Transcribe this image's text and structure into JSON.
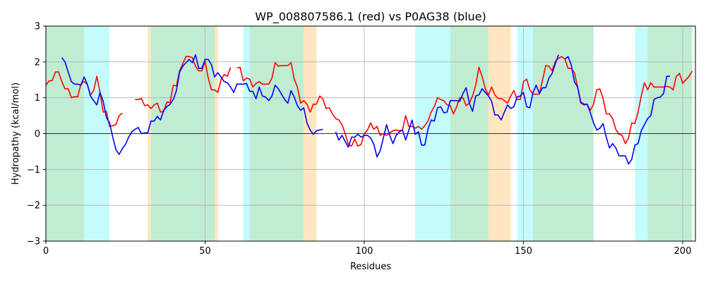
{
  "chart_data": {
    "type": "line",
    "title": "WP_008807586.1 (red) vs P0AG38 (blue)",
    "xlabel": "Residues",
    "ylabel": "Hydropathy (kcal/mol)",
    "xlim": [
      0,
      204
    ],
    "ylim": [
      -3,
      3
    ],
    "x_ticks": [
      0,
      50,
      100,
      150,
      200
    ],
    "y_ticks": [
      -3,
      -2,
      -1,
      0,
      1,
      2,
      3
    ],
    "grid": true,
    "zero_line": true,
    "colors": {
      "red_series": "#ff0000",
      "blue_series": "#0000ff",
      "green_band": "#c0ecd2",
      "cyan_band": "#c4fcfc",
      "orange_band": "#ffe6c0",
      "grid": "#b0b0b0"
    },
    "bands": [
      {
        "x0": 0,
        "x1": 12,
        "color": "green"
      },
      {
        "x0": 12,
        "x1": 20,
        "color": "cyan"
      },
      {
        "x0": 32,
        "x1": 33,
        "color": "orange"
      },
      {
        "x0": 33,
        "x1": 53,
        "color": "green"
      },
      {
        "x0": 53,
        "x1": 54,
        "color": "orange"
      },
      {
        "x0": 62,
        "x1": 64,
        "color": "cyan"
      },
      {
        "x0": 64,
        "x1": 81,
        "color": "green"
      },
      {
        "x0": 81,
        "x1": 85,
        "color": "orange"
      },
      {
        "x0": 116,
        "x1": 127,
        "color": "cyan"
      },
      {
        "x0": 127,
        "x1": 139,
        "color": "green"
      },
      {
        "x0": 139,
        "x1": 146,
        "color": "orange"
      },
      {
        "x0": 148,
        "x1": 153,
        "color": "cyan"
      },
      {
        "x0": 153,
        "x1": 172,
        "color": "green"
      },
      {
        "x0": 185,
        "x1": 189,
        "color": "cyan"
      },
      {
        "x0": 189,
        "x1": 203,
        "color": "green"
      }
    ],
    "series": [
      {
        "key": "red",
        "segments": [
          {
            "x_start": 0,
            "values": [
              1.35,
              1.47,
              1.48,
              1.72,
              1.72,
              1.45,
              1.25,
              1.25,
              1.0,
              1.03,
              1.03,
              1.38,
              1.45,
              1.38,
              1.07,
              1.2,
              1.6,
              1.15,
              0.6,
              0.62,
              0.2,
              0.22,
              0.25,
              0.5,
              0.57
            ]
          },
          {
            "x_start": 28,
            "values": [
              0.95,
              0.95,
              0.98,
              0.78,
              0.8,
              0.7,
              0.8,
              0.85,
              0.6,
              0.62,
              0.88,
              0.87,
              1.35,
              1.33,
              1.75,
              1.95,
              2.15,
              2.15,
              2.12,
              1.88,
              1.75,
              1.75,
              2.02,
              1.55,
              1.22,
              1.22,
              1.15,
              1.5,
              1.65,
              1.6,
              1.85
            ]
          },
          {
            "x_start": 60,
            "values": [
              1.83,
              1.85,
              1.47,
              1.55,
              1.52,
              1.3,
              1.4,
              1.45,
              1.38,
              1.38,
              1.38,
              1.55,
              1.98,
              1.88,
              1.9,
              1.9,
              1.9,
              1.98,
              1.52,
              1.3,
              0.85,
              0.92,
              0.82,
              0.6,
              0.82,
              0.82,
              1.05,
              0.97,
              0.7,
              0.72,
              0.55,
              0.42,
              0.38,
              0.25,
              0.0,
              -0.3,
              -0.35,
              -0.15,
              -0.35,
              -0.3,
              0.0,
              0.1,
              0.3,
              0.12,
              0.2,
              -0.05,
              0.0,
              -0.05,
              0.02,
              0.08,
              0.1,
              0.08,
              0.1,
              0.5,
              0.2,
              0.2,
              0.15,
              0.2,
              0.12,
              0.22,
              0.35,
              0.6,
              0.75,
              1.0,
              0.95,
              0.92,
              0.8,
              0.78,
              0.55,
              0.75,
              1.0,
              1.0,
              0.78,
              0.85,
              1.05,
              1.35,
              1.85,
              1.6,
              1.25,
              1.08,
              1.3,
              1.08,
              0.98,
              0.98,
              0.92,
              0.85,
              1.05,
              1.2,
              0.95,
              0.95,
              1.45,
              1.52,
              1.22,
              1.1,
              1.1,
              1.1,
              1.5,
              1.9,
              1.88,
              1.75,
              2.02,
              2.1,
              2.15,
              2.08,
              1.82,
              1.82,
              1.7,
              1.3,
              0.85,
              0.8,
              0.82,
              0.65,
              0.82,
              1.22,
              1.25,
              0.98,
              0.55,
              0.55,
              0.42,
              0.12,
              -0.02,
              -0.05,
              -0.28,
              -0.12,
              0.3,
              0.28,
              0.6,
              1.05,
              1.42,
              1.22,
              1.42,
              1.3,
              1.3,
              1.3,
              1.3,
              1.32,
              1.3,
              1.22,
              1.6,
              1.68,
              1.4,
              1.5,
              1.6,
              1.75
            ]
          }
        ]
      },
      {
        "key": "blue",
        "segments": [
          {
            "x_start": 5,
            "values": [
              2.12,
              2.0,
              1.72,
              1.45,
              1.38,
              1.38,
              1.35,
              1.58,
              1.38,
              1.05,
              0.92,
              0.8,
              1.15,
              0.9,
              0.45,
              0.3,
              -0.1,
              -0.45,
              -0.58,
              -0.42,
              -0.3,
              -0.1,
              0.05,
              0.12,
              0.17,
              0.0,
              0.02,
              0.02,
              0.35,
              0.35,
              0.48,
              0.38,
              0.65,
              0.75,
              0.82,
              0.95,
              1.2,
              1.72,
              1.88,
              1.98,
              2.07,
              1.98,
              2.2,
              1.82,
              1.82,
              2.07,
              2.07,
              1.92,
              1.58,
              1.7,
              1.58,
              1.45,
              1.42,
              1.3,
              1.15,
              1.38,
              1.38,
              1.38,
              1.4,
              1.18,
              1.18,
              0.97,
              1.3,
              1.05,
              1.02,
              0.92,
              1.05,
              1.35,
              1.25,
              1.1,
              0.95,
              0.85,
              1.2,
              1.02,
              0.78,
              0.65,
              0.72,
              0.3,
              0.1,
              -0.02,
              0.08,
              0.1,
              0.12
            ]
          },
          {
            "x_start": 91,
            "values": [
              0.05,
              -0.18,
              -0.05,
              -0.22,
              -0.38,
              -0.1,
              -0.1,
              -0.02,
              -0.1,
              -0.05,
              -0.05,
              -0.12,
              -0.3,
              -0.65,
              -0.48,
              -0.12,
              0.25,
              -0.05,
              -0.28,
              -0.05,
              0.05,
              0.1,
              -0.18,
              0.1,
              0.38,
              -0.02,
              0.05,
              -0.32,
              -0.32,
              0.12,
              0.38,
              0.35,
              0.72,
              0.75,
              0.58,
              0.6,
              0.92,
              0.92,
              0.92,
              0.9,
              1.12,
              1.28,
              0.85,
              0.62,
              1.05,
              1.08,
              1.25,
              1.15,
              1.05,
              0.9,
              0.52,
              0.52,
              0.38,
              0.6,
              0.8,
              0.7,
              0.75,
              1.02,
              1.05,
              1.15,
              0.75,
              0.72,
              1.15,
              1.35,
              1.12,
              1.28,
              1.28,
              1.55,
              1.68,
              1.95,
              2.2
            ]
          },
          {
            "x_start": 163,
            "values": [
              2.08,
              2.15,
              1.92,
              1.45,
              1.3,
              0.88,
              0.82,
              0.82,
              0.58,
              0.3,
              0.1,
              0.15,
              0.28,
              -0.1,
              -0.4,
              -0.28,
              -0.4,
              -0.62,
              -0.62,
              -0.62,
              -0.85,
              -0.72,
              -0.32,
              -0.28,
              0.08,
              0.25,
              0.42,
              0.5,
              0.95,
              1.0,
              1.02,
              1.12,
              1.6,
              1.6
            ]
          }
        ]
      }
    ]
  }
}
